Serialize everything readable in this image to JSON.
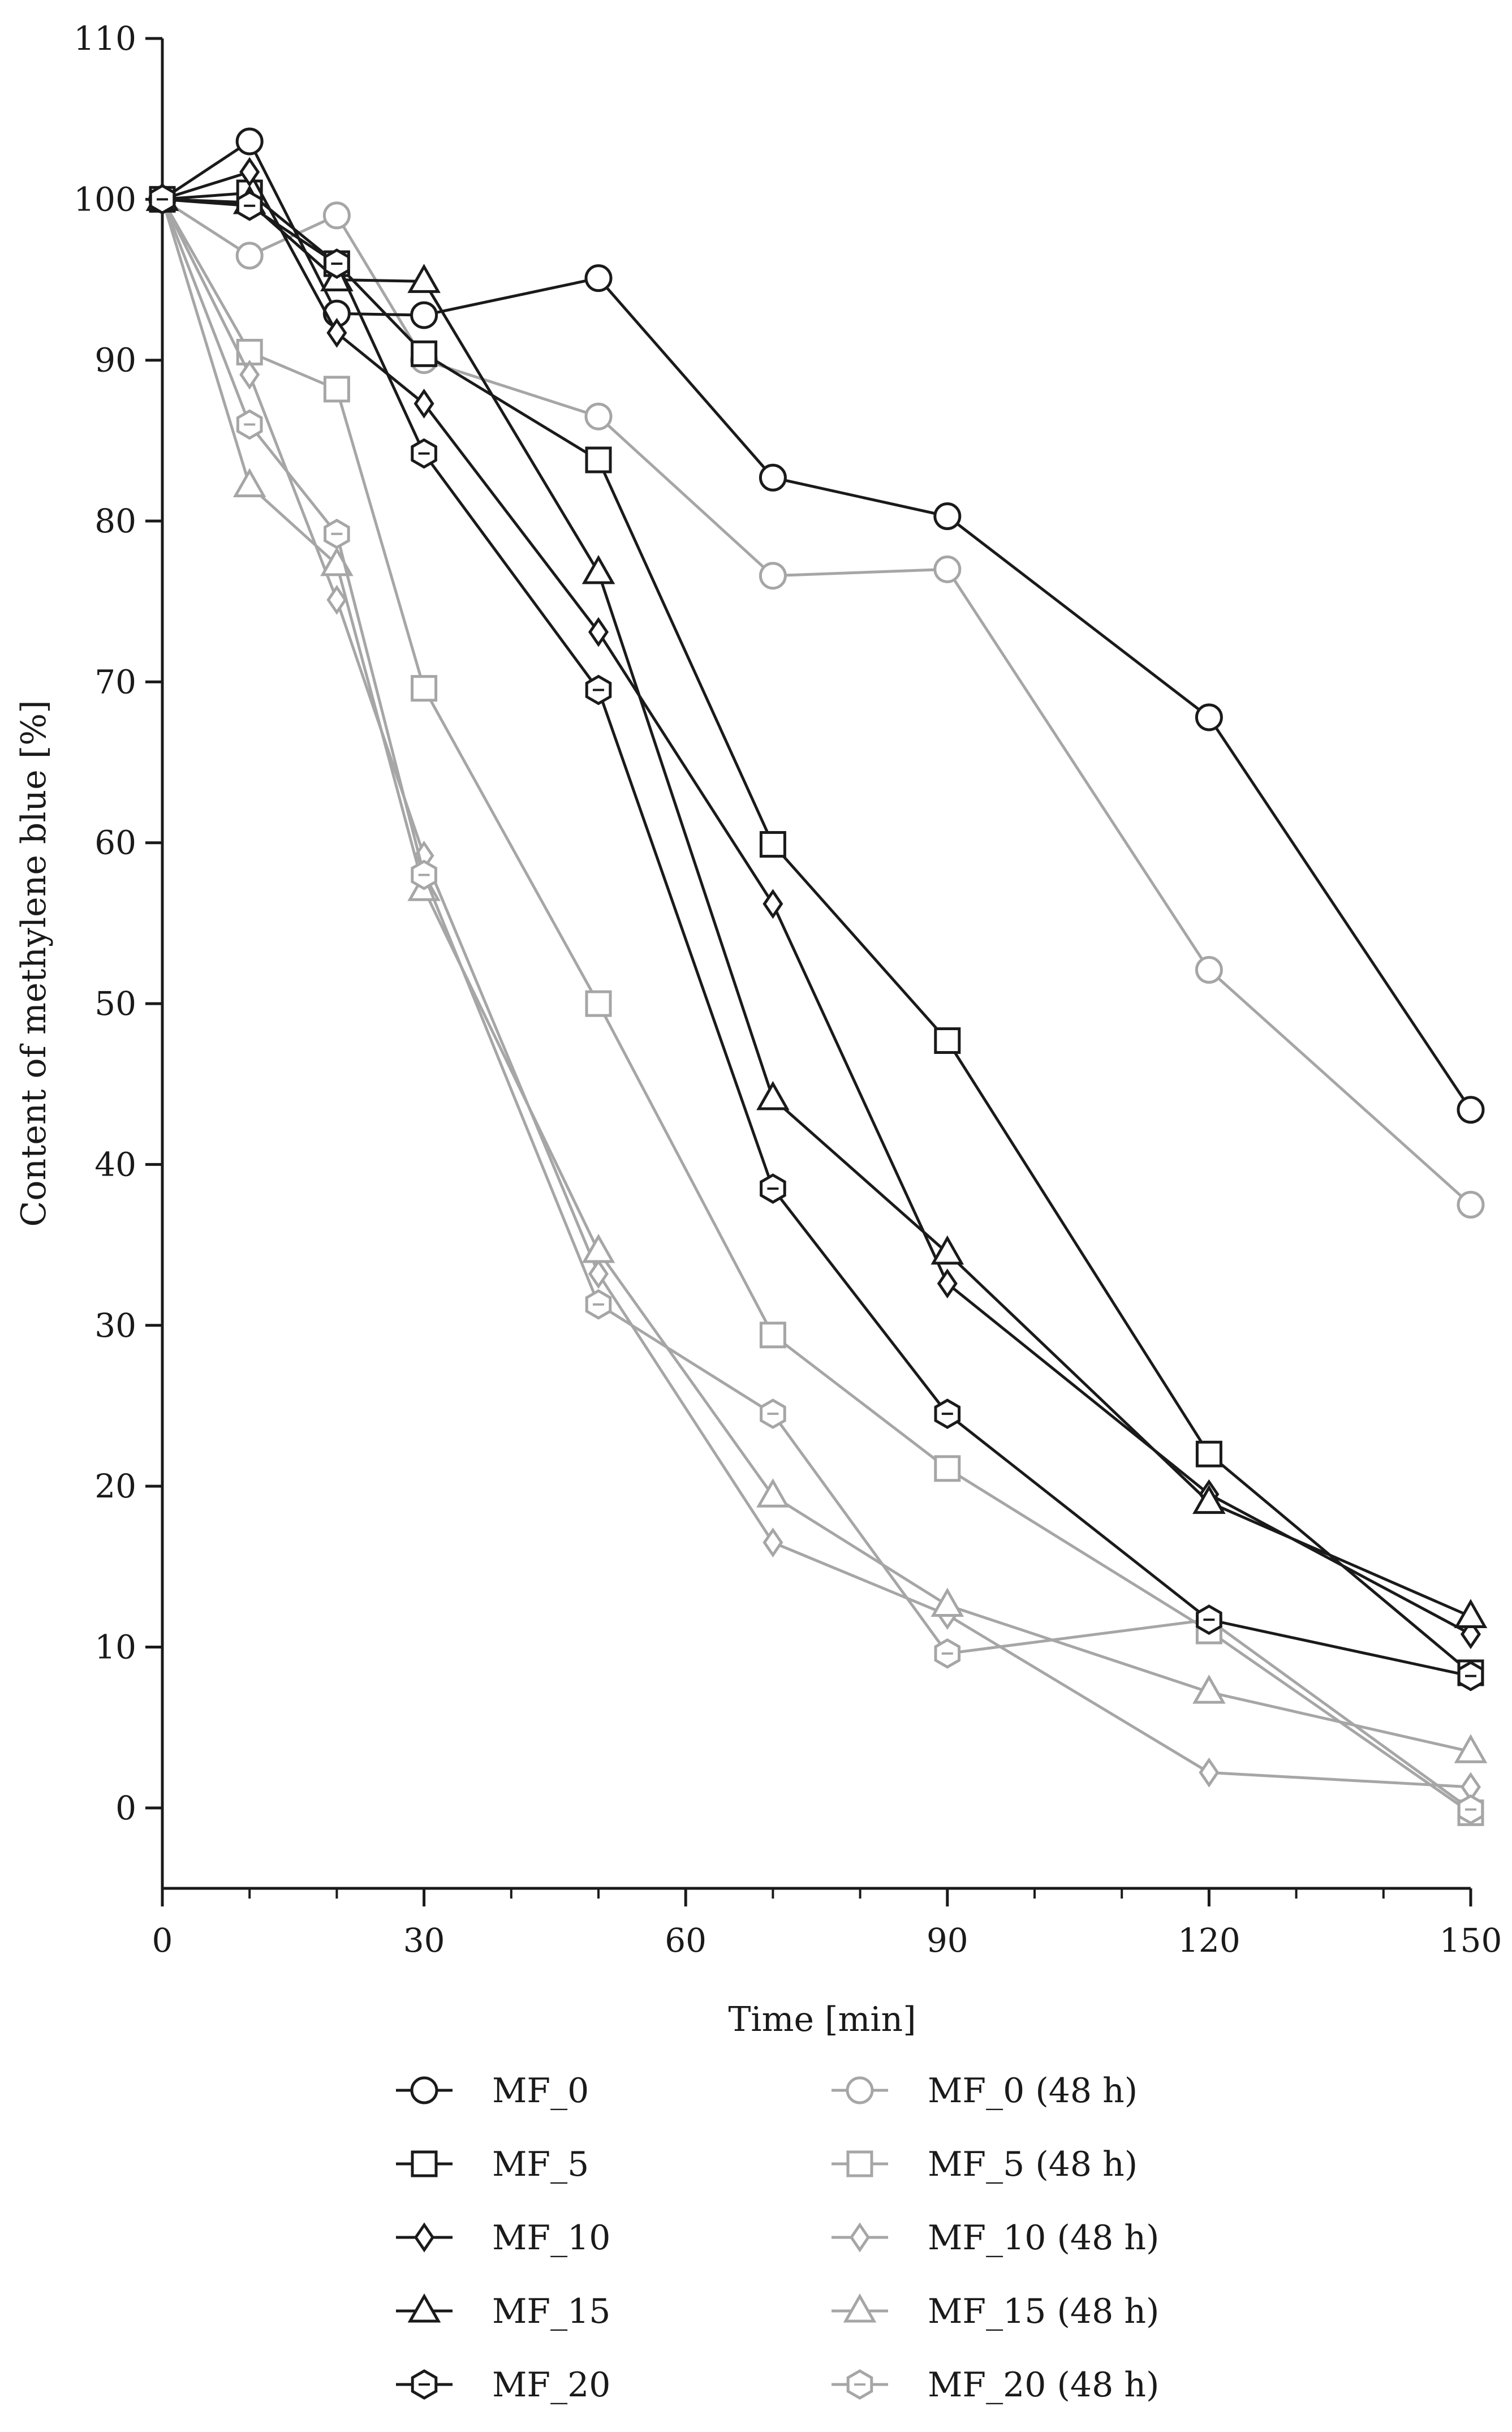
{
  "chart_data": {
    "type": "line",
    "title": "",
    "xlabel": "Time [min]",
    "ylabel": "Content of methylene blue [%]",
    "xlim": [
      0,
      150
    ],
    "ylim": [
      -5,
      110
    ],
    "x_ticks": [
      0,
      30,
      60,
      90,
      120,
      150
    ],
    "x_minor_ticks": [
      10,
      20,
      40,
      50,
      70,
      80,
      100,
      110,
      130,
      140
    ],
    "y_ticks": [
      0,
      10,
      20,
      30,
      40,
      50,
      60,
      70,
      80,
      90,
      100,
      110
    ],
    "grid": false,
    "legend_position": "bottom",
    "x": [
      0,
      10,
      20,
      30,
      50,
      70,
      90,
      120,
      150
    ],
    "series": [
      {
        "name": "MF_0",
        "color": "#1a1a1a",
        "marker": "circle",
        "values": [
          100,
          103.6,
          92.9,
          92.8,
          95.1,
          82.7,
          80.3,
          67.8,
          43.4
        ]
      },
      {
        "name": "MF_5",
        "color": "#1a1a1a",
        "marker": "square",
        "values": [
          100,
          100.4,
          96.0,
          90.4,
          83.8,
          59.9,
          47.7,
          22.0,
          8.4
        ]
      },
      {
        "name": "MF_10",
        "color": "#1a1a1a",
        "marker": "diamond",
        "values": [
          100,
          101.7,
          91.7,
          87.3,
          73.1,
          56.2,
          32.6,
          19.5,
          10.8
        ]
      },
      {
        "name": "MF_15",
        "color": "#1a1a1a",
        "marker": "triangle",
        "values": [
          100,
          99.8,
          95.0,
          94.9,
          76.8,
          44.1,
          34.5,
          19.0,
          11.9
        ]
      },
      {
        "name": "MF_20",
        "color": "#1a1a1a",
        "marker": "hexagon",
        "values": [
          100,
          99.6,
          96.0,
          84.2,
          69.5,
          38.5,
          24.5,
          11.7,
          8.2
        ]
      },
      {
        "name": "MF_0 (48 h)",
        "color": "#a6a6a6",
        "marker": "circle",
        "values": [
          100,
          96.5,
          99.0,
          90.0,
          86.5,
          76.6,
          77.0,
          52.1,
          37.5
        ]
      },
      {
        "name": "MF_5 (48 h)",
        "color": "#a6a6a6",
        "marker": "square",
        "values": [
          100,
          90.5,
          88.2,
          69.6,
          50.0,
          29.4,
          21.1,
          11.0,
          -0.3
        ]
      },
      {
        "name": "MF_10 (48 h)",
        "color": "#a6a6a6",
        "marker": "diamond",
        "values": [
          100,
          89.1,
          75.1,
          59.2,
          33.2,
          16.5,
          12.0,
          2.2,
          1.3
        ]
      },
      {
        "name": "MF_15 (48 h)",
        "color": "#a6a6a6",
        "marker": "triangle",
        "values": [
          100,
          82.2,
          77.3,
          57.1,
          34.6,
          19.4,
          12.6,
          7.2,
          3.5
        ]
      },
      {
        "name": "MF_20 (48 h)",
        "color": "#a6a6a6",
        "marker": "hexagon",
        "values": [
          100,
          86.0,
          79.2,
          58.0,
          31.3,
          24.5,
          9.6,
          11.7,
          -0.1
        ]
      }
    ]
  }
}
